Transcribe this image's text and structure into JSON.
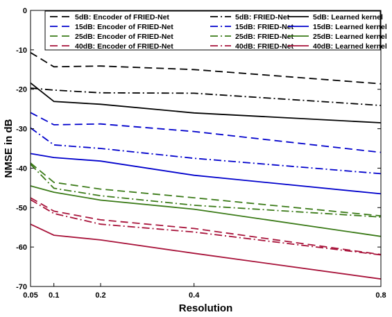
{
  "chart_data": {
    "type": "line",
    "title": "",
    "xlabel": "Resolution",
    "ylabel": "NMSE in dB",
    "xlim": [
      0.05,
      0.8
    ],
    "ylim": [
      -70,
      0
    ],
    "xticks": [
      0.05,
      0.1,
      0.2,
      0.4,
      0.8
    ],
    "xtick_labels": [
      "0.05",
      "0.1",
      "0.2",
      "0.4",
      "0.8"
    ],
    "yticks": [
      0,
      -10,
      -20,
      -30,
      -40,
      -50,
      -60,
      -70
    ],
    "ytick_labels": [
      "0",
      "-10",
      "-20",
      "-30",
      "-40",
      "-50",
      "-60",
      "-70"
    ],
    "grid": false,
    "legend_position": "top-right",
    "legend_columns": 3,
    "x": [
      0.05,
      0.1,
      0.2,
      0.4,
      0.8
    ],
    "series": [
      {
        "name": "5dB: Encoder of FRIED-Net",
        "color": "#000000",
        "style": "dashed",
        "values": [
          -10.7,
          -14.3,
          -14.1,
          -15.0,
          -18.6
        ]
      },
      {
        "name": "15dB: Encoder of FRIED-Net",
        "color": "#0000cc",
        "style": "dashed",
        "values": [
          -25.9,
          -29.0,
          -28.8,
          -30.7,
          -36.0
        ]
      },
      {
        "name": "25dB: Encoder of FRIED-Net",
        "color": "#3a7a17",
        "style": "dashed",
        "values": [
          -38.7,
          -43.6,
          -45.3,
          -47.5,
          -52.1
        ]
      },
      {
        "name": "40dB: Encoder of FRIED-Net",
        "color": "#a8133a",
        "style": "dashed",
        "values": [
          -47.5,
          -50.9,
          -53.1,
          -55.3,
          -61.9
        ]
      },
      {
        "name": "5dB: FRIED-Net",
        "color": "#000000",
        "style": "dashdot",
        "values": [
          -19.7,
          -20.2,
          -20.9,
          -21.0,
          -24.1
        ]
      },
      {
        "name": "15dB: FRIED-Net",
        "color": "#0000cc",
        "style": "dashdot",
        "values": [
          -29.8,
          -34.1,
          -35.0,
          -37.5,
          -41.4
        ]
      },
      {
        "name": "25dB: FRIED-Net",
        "color": "#3a7a17",
        "style": "dashdot",
        "values": [
          -39.0,
          -45.1,
          -47.0,
          -49.4,
          -52.4
        ]
      },
      {
        "name": "40dB: FRIED-Net",
        "color": "#a8133a",
        "style": "dashdot",
        "values": [
          -48.0,
          -51.5,
          -54.2,
          -56.2,
          -62.0
        ]
      },
      {
        "name": "5dB: Learned kernel",
        "color": "#000000",
        "style": "solid",
        "values": [
          -18.4,
          -23.1,
          -23.8,
          -26.0,
          -28.5
        ]
      },
      {
        "name": "15dB: Learned kernel",
        "color": "#0000cc",
        "style": "solid",
        "values": [
          -36.3,
          -37.3,
          -38.2,
          -41.8,
          -46.5
        ]
      },
      {
        "name": "25dB: Learned kernel",
        "color": "#3a7a17",
        "style": "solid",
        "values": [
          -44.5,
          -46.1,
          -48.1,
          -50.4,
          -57.3
        ]
      },
      {
        "name": "40dB: Learned kernel",
        "color": "#a8133a",
        "style": "solid",
        "values": [
          -54.2,
          -57.0,
          -58.2,
          -61.6,
          -68.1
        ]
      }
    ]
  }
}
